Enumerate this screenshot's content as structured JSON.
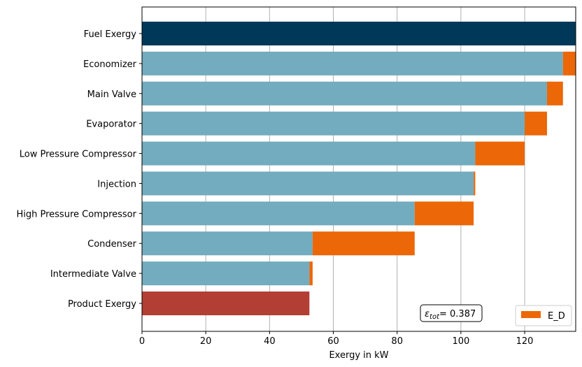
{
  "chart_data": {
    "type": "bar",
    "orientation": "horizontal",
    "stacked": true,
    "categories": [
      "Fuel Exergy",
      "Economizer",
      "Main Valve",
      "Evaporator",
      "Low Pressure Compressor",
      "Injection",
      "High Pressure Compressor",
      "Condenser",
      "Intermediate Valve",
      "Product Exergy"
    ],
    "base_values": [
      136,
      132,
      127,
      120,
      104.5,
      104,
      85.5,
      53.5,
      52.5,
      52.5
    ],
    "destruction_values": [
      0,
      4,
      5,
      7,
      15.5,
      0.5,
      18.5,
      32,
      1,
      0
    ],
    "series": [
      {
        "name": "E_D",
        "values": [
          0,
          4,
          5,
          7,
          15.5,
          0.5,
          18.5,
          32,
          1,
          0
        ]
      }
    ],
    "xlabel": "Exergy in kW",
    "ylabel": "",
    "xlim": [
      0,
      136
    ],
    "x_ticks": [
      0,
      20,
      40,
      60,
      80,
      100,
      120
    ],
    "grid": "x",
    "legend_position": "lower right",
    "annotation": {
      "symbol": "ε",
      "subscript": "tot",
      "value_text": "= 0.387"
    },
    "colors": {
      "fuel": "#00385a",
      "base": "#72acbe",
      "destruction": "#ec6707",
      "product": "#b33e34",
      "grid": "#b0b0b0"
    }
  }
}
